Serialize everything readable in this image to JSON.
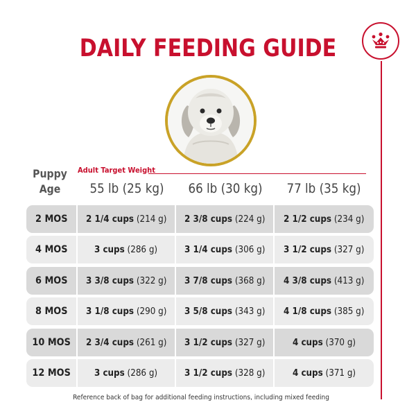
{
  "title": "DAILY FEEDING GUIDE",
  "brand_icon": "crown-icon",
  "colors": {
    "accent": "#c8102e",
    "gold_ring": "#c9a227",
    "row_dark": "#d9d9d9",
    "row_light": "#ececec"
  },
  "header": {
    "puppy": "Puppy",
    "age": "Age",
    "target_label": "Adult Target Weight",
    "weights": [
      "55 lb (25 kg)",
      "66 lb (30 kg)",
      "77 lb (35 kg)"
    ]
  },
  "rows": [
    {
      "age": "2 MOS",
      "cells": [
        {
          "cups": "2 1/4 cups",
          "grams": "(214 g)"
        },
        {
          "cups": "2 3/8 cups",
          "grams": "(224 g)"
        },
        {
          "cups": "2 1/2 cups",
          "grams": "(234 g)"
        }
      ]
    },
    {
      "age": "4 MOS",
      "cells": [
        {
          "cups": "3 cups",
          "grams": "(286 g)"
        },
        {
          "cups": "3 1/4 cups",
          "grams": "(306 g)"
        },
        {
          "cups": "3 1/2 cups",
          "grams": "(327 g)"
        }
      ]
    },
    {
      "age": "6 MOS",
      "cells": [
        {
          "cups": "3 3/8 cups",
          "grams": "(322 g)"
        },
        {
          "cups": "3 7/8 cups",
          "grams": "(368 g)"
        },
        {
          "cups": "4 3/8 cups",
          "grams": "(413 g)"
        }
      ]
    },
    {
      "age": "8 MOS",
      "cells": [
        {
          "cups": "3 1/8 cups",
          "grams": "(290 g)"
        },
        {
          "cups": "3 5/8 cups",
          "grams": "(343 g)"
        },
        {
          "cups": "4 1/8 cups",
          "grams": "(385 g)"
        }
      ]
    },
    {
      "age": "10 MOS",
      "cells": [
        {
          "cups": "2 3/4 cups",
          "grams": "(261 g)"
        },
        {
          "cups": "3 1/2 cups",
          "grams": "(327 g)"
        },
        {
          "cups": "4 cups",
          "grams": "(370 g)"
        }
      ]
    },
    {
      "age": "12 MOS",
      "cells": [
        {
          "cups": "3 cups",
          "grams": "(286 g)"
        },
        {
          "cups": "3 1/2 cups",
          "grams": "(328 g)"
        },
        {
          "cups": "4 cups",
          "grams": "(371 g)"
        }
      ]
    }
  ],
  "footnote": "Reference back of bag for additional feeding instructions, including mixed feeding"
}
